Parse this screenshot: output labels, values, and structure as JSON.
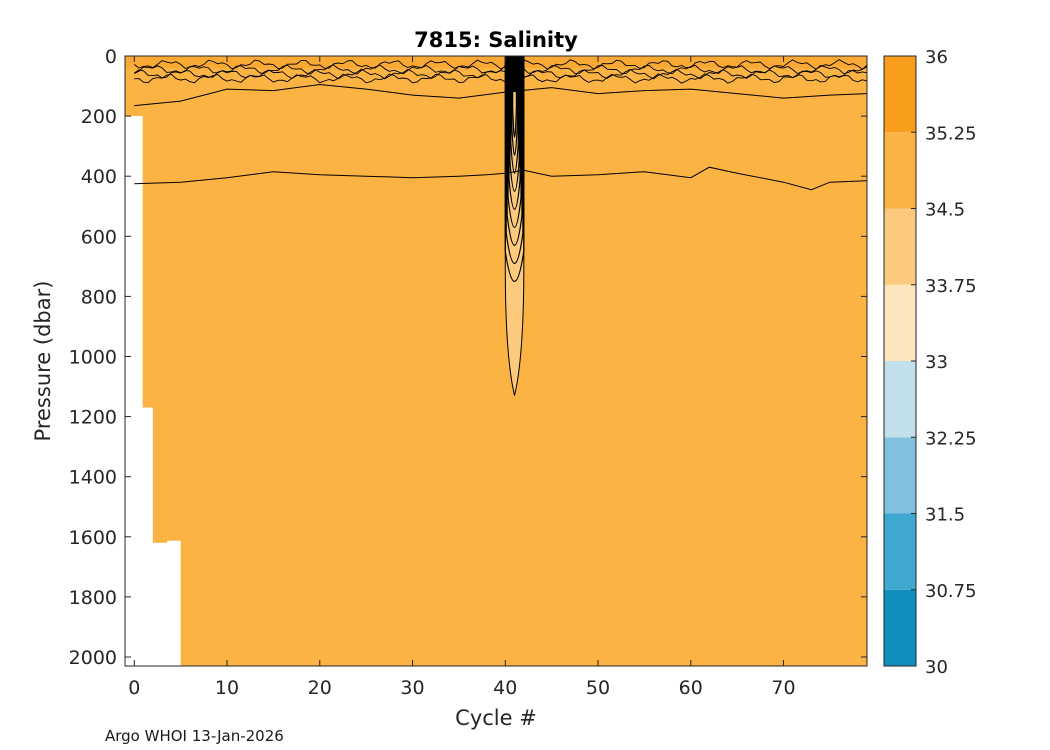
{
  "footer_text": "Argo WHOI 13-Jan-2026",
  "chart_data": {
    "type": "heatmap",
    "title": "7815:  Salinity",
    "xlabel": "Cycle #",
    "ylabel": "Pressure (dbar)",
    "xlim": [
      -1,
      79
    ],
    "ylim": [
      0,
      2030
    ],
    "y_reversed": true,
    "x_ticks": [
      0,
      10,
      20,
      30,
      40,
      50,
      60,
      70
    ],
    "y_ticks": [
      0,
      200,
      400,
      600,
      800,
      1000,
      1200,
      1400,
      1600,
      1800,
      2000
    ],
    "colorbar": {
      "ticks": [
        30,
        30.75,
        31.5,
        32.25,
        33,
        33.75,
        34.5,
        35.25,
        36
      ],
      "colors": [
        "#0f8fbd",
        "#3fa8d0",
        "#7fc1de",
        "#c2e0ec",
        "#fde5bd",
        "#fbca7c",
        "#fbb344",
        "#f99d1c"
      ]
    },
    "background_level_color": "#fbb344",
    "surface_level_color": "#f9a12a",
    "low_salinity_plume_color": "#fbca7c",
    "contour_color": "#000000",
    "profile_max_depth": [
      {
        "x_start": -1,
        "x_end": 0.9,
        "max_pressure": 200
      },
      {
        "x_start": 0.9,
        "x_end": 2,
        "max_pressure": 1170
      },
      {
        "x_start": 2,
        "x_end": 3.5,
        "max_pressure": 1620
      },
      {
        "x_start": 3.5,
        "x_end": 5,
        "max_pressure": 1613
      },
      {
        "x_start": 5,
        "x_end": 79,
        "max_pressure": 2030
      }
    ],
    "contours": [
      {
        "label": "upper contour",
        "x": [
          0,
          5,
          10,
          15,
          20,
          25,
          30,
          35,
          40,
          45,
          50,
          55,
          60,
          65,
          70,
          75,
          79
        ],
        "pressure": [
          165,
          150,
          110,
          115,
          95,
          110,
          130,
          140,
          120,
          105,
          125,
          115,
          110,
          125,
          140,
          130,
          125
        ]
      },
      {
        "label": "contour near 400 dbar",
        "x": [
          0,
          5,
          10,
          15,
          20,
          25,
          30,
          35,
          38,
          40,
          42,
          45,
          50,
          55,
          60,
          62,
          65,
          70,
          73,
          75,
          79
        ],
        "pressure": [
          425,
          420,
          405,
          385,
          395,
          400,
          405,
          400,
          395,
          390,
          380,
          400,
          395,
          385,
          405,
          370,
          390,
          420,
          445,
          420,
          415
        ]
      }
    ],
    "plume": {
      "x_center": 41,
      "x_half_width": 1.0,
      "bottom_pressure": 1130,
      "inner_bottom_pressure": 850
    }
  }
}
